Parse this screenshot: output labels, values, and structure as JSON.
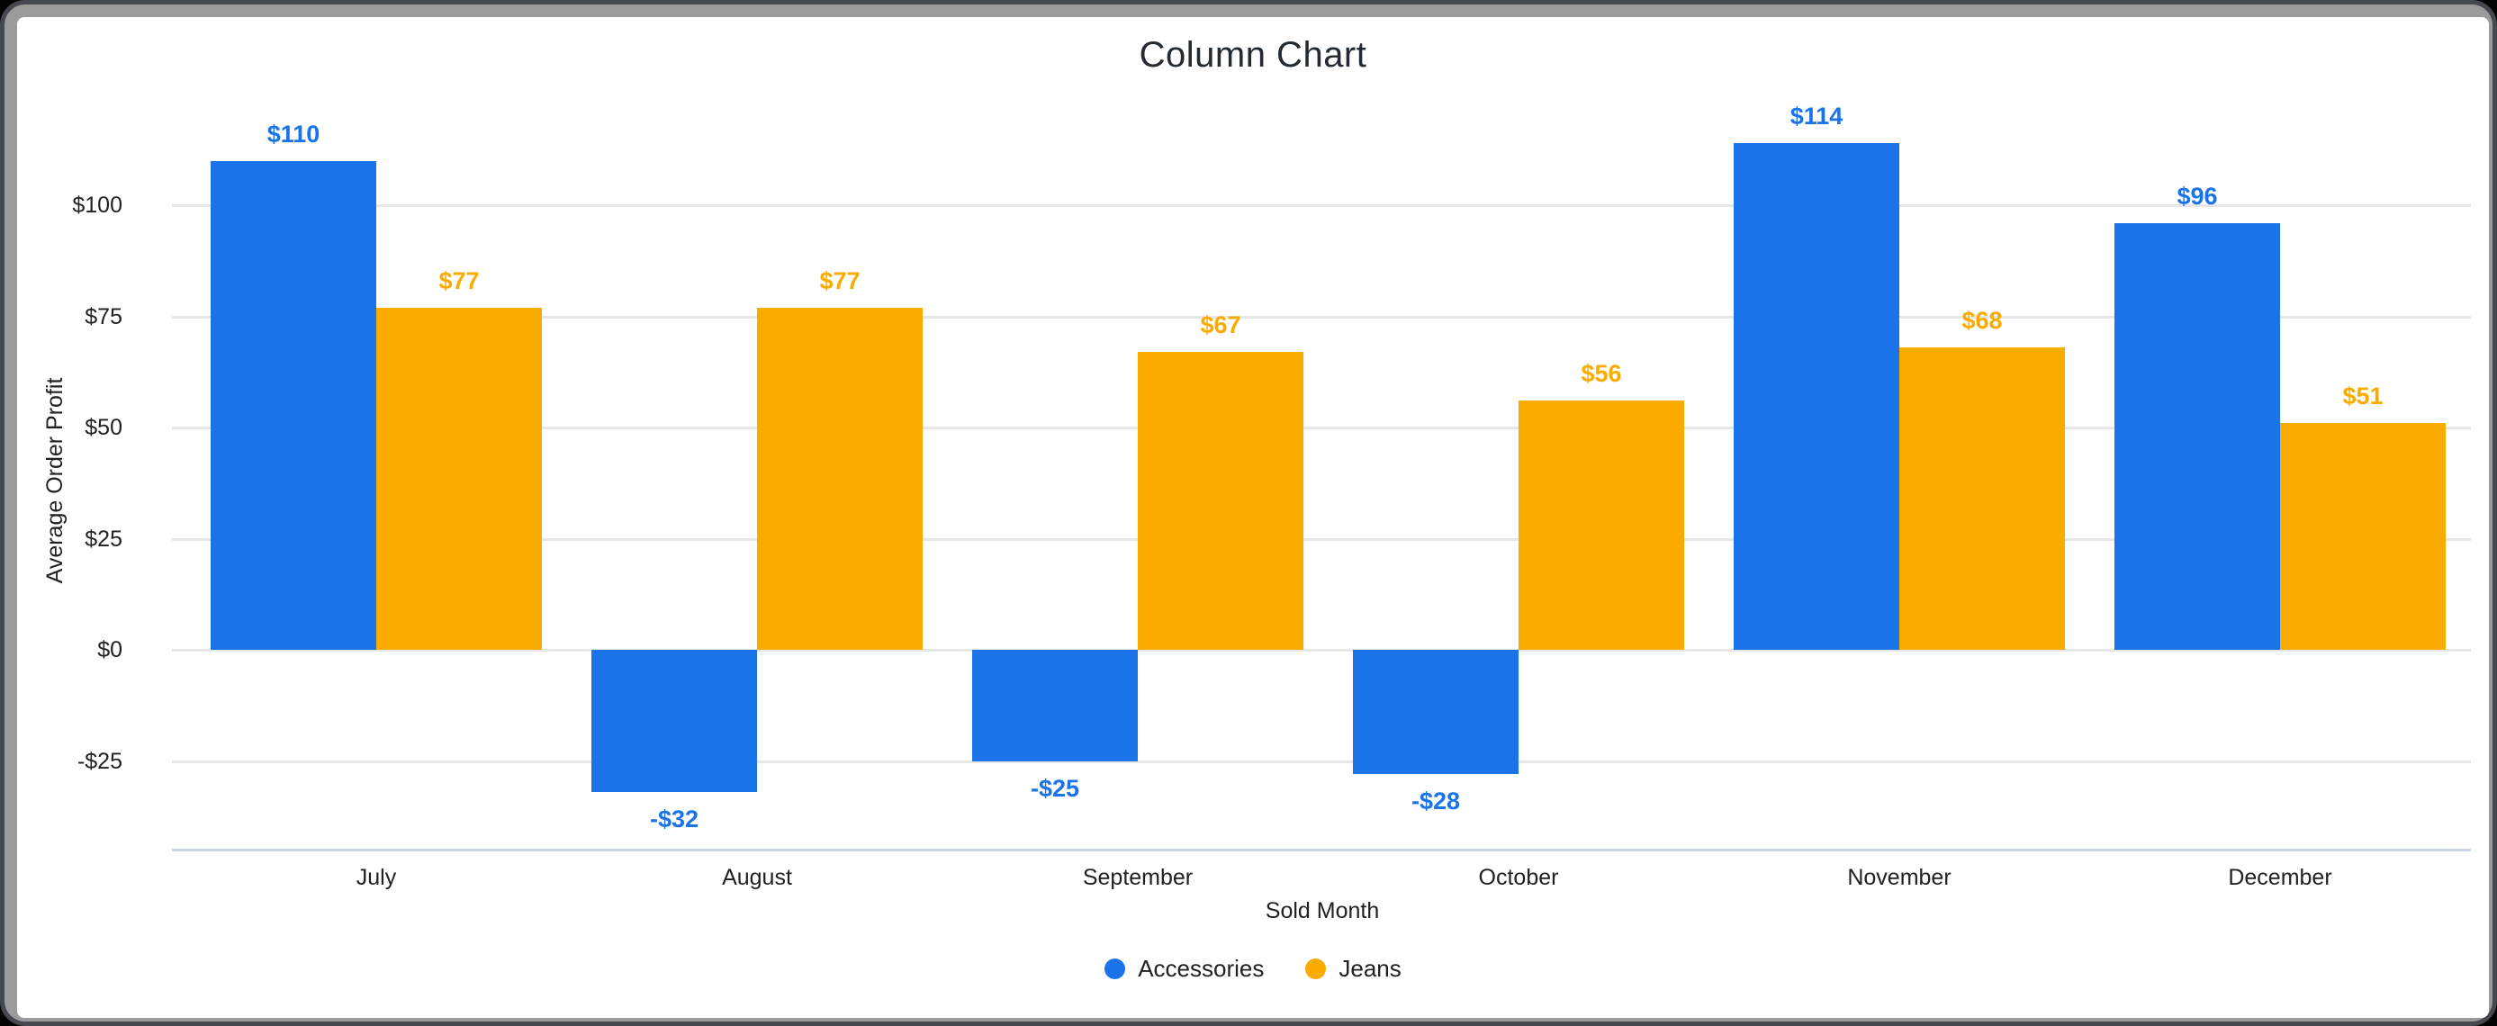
{
  "frame": {
    "border_color": "#9b9b9b",
    "edge_color": "#45494f",
    "page_background": "#050505",
    "card_background": "#ffffff"
  },
  "chart_data": {
    "type": "bar",
    "title": "Column Chart",
    "xlabel": "Sold Month",
    "ylabel": "Average Order Profit",
    "categories": [
      "July",
      "August",
      "September",
      "October",
      "November",
      "December"
    ],
    "series": [
      {
        "name": "Accessories",
        "color": "#1a73e8",
        "values": [
          110,
          -32,
          -25,
          -28,
          114,
          96
        ],
        "labels": [
          "$110",
          "-$32",
          "-$25",
          "-$28",
          "$114",
          "$96"
        ]
      },
      {
        "name": "Jeans",
        "color": "#f9ab00",
        "values": [
          77,
          77,
          67,
          56,
          68,
          51
        ],
        "labels": [
          "$77",
          "$77",
          "$67",
          "$56",
          "$68",
          "$51"
        ]
      }
    ],
    "y_ticks": [
      {
        "label": "$100",
        "value": 100
      },
      {
        "label": "$75",
        "value": 75
      },
      {
        "label": "$50",
        "value": 50
      },
      {
        "label": "$25",
        "value": 25
      },
      {
        "label": "$0",
        "value": 0
      },
      {
        "label": "-$25",
        "value": -25
      }
    ],
    "ylim": [
      -45,
      117
    ],
    "grid": true,
    "legend_position": "bottom",
    "grid_color": "#e7e7e7",
    "axis_line_color": "#ccd4e8",
    "title_color": "#242a31",
    "text_color": "#202124"
  }
}
